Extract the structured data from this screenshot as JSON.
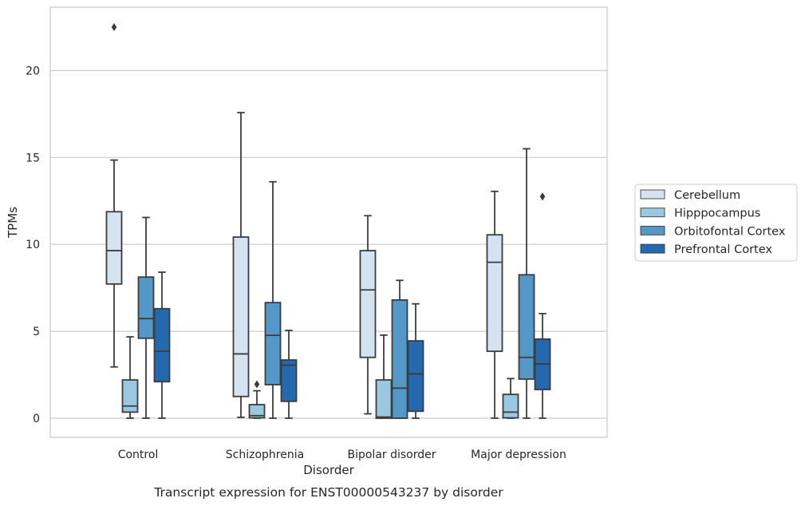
{
  "chart_data": {
    "type": "box",
    "caption": "Transcript expression for ENST00000543237 by disorder",
    "xlabel": "Disorder",
    "ylabel": "TPMs",
    "ylim": [
      -1.1,
      23.5
    ],
    "yticks": [
      0,
      5,
      10,
      15,
      20
    ],
    "grid": "horizontal",
    "legend_position": "right",
    "categories": [
      "Control",
      "Schizophrenia",
      "Bipolar disorder",
      "Major depression"
    ],
    "series": [
      {
        "name": "Cerebellum",
        "color": "#d5e3f1",
        "boxes": [
          {
            "whisker_low": 2.95,
            "q1": 7.72,
            "median": 9.64,
            "q3": 11.88,
            "whisker_high": 14.85,
            "outliers": [
              22.5
            ]
          },
          {
            "whisker_low": 0.05,
            "q1": 1.25,
            "median": 3.7,
            "q3": 10.42,
            "whisker_high": 17.58,
            "outliers": []
          },
          {
            "whisker_low": 0.25,
            "q1": 3.5,
            "median": 7.38,
            "q3": 9.64,
            "whisker_high": 11.65,
            "outliers": []
          },
          {
            "whisker_low": 0.0,
            "q1": 3.85,
            "median": 8.97,
            "q3": 10.55,
            "whisker_high": 13.05,
            "outliers": []
          }
        ]
      },
      {
        "name": "Hipppocampus",
        "color": "#9ac8e0",
        "boxes": [
          {
            "whisker_low": 0.0,
            "q1": 0.35,
            "median": 0.7,
            "q3": 2.2,
            "whisker_high": 4.68,
            "outliers": []
          },
          {
            "whisker_low": 0.0,
            "q1": 0.02,
            "median": 0.15,
            "q3": 0.78,
            "whisker_high": 1.58,
            "outliers": [
              1.95
            ]
          },
          {
            "whisker_low": 0.0,
            "q1": 0.0,
            "median": 0.07,
            "q3": 2.2,
            "whisker_high": 4.78,
            "outliers": []
          },
          {
            "whisker_low": 0.0,
            "q1": 0.02,
            "median": 0.35,
            "q3": 1.37,
            "whisker_high": 2.28,
            "outliers": []
          }
        ]
      },
      {
        "name": "Orbitofontal Cortex",
        "color": "#5398c7",
        "boxes": [
          {
            "whisker_low": 0.0,
            "q1": 4.6,
            "median": 5.73,
            "q3": 8.12,
            "whisker_high": 11.55,
            "outliers": []
          },
          {
            "whisker_low": 0.0,
            "q1": 1.93,
            "median": 4.77,
            "q3": 6.65,
            "whisker_high": 13.6,
            "outliers": []
          },
          {
            "whisker_low": 0.0,
            "q1": 0.0,
            "median": 1.73,
            "q3": 6.8,
            "whisker_high": 7.93,
            "outliers": []
          },
          {
            "whisker_low": 0.0,
            "q1": 2.25,
            "median": 3.5,
            "q3": 8.25,
            "whisker_high": 15.5,
            "outliers": []
          }
        ]
      },
      {
        "name": "Prefrontal Cortex",
        "color": "#2468ad",
        "boxes": [
          {
            "whisker_low": 0.0,
            "q1": 2.1,
            "median": 3.85,
            "q3": 6.3,
            "whisker_high": 8.4,
            "outliers": []
          },
          {
            "whisker_low": 0.0,
            "q1": 0.97,
            "median": 3.05,
            "q3": 3.35,
            "whisker_high": 5.05,
            "outliers": []
          },
          {
            "whisker_low": 0.0,
            "q1": 0.4,
            "median": 2.55,
            "q3": 4.45,
            "whisker_high": 6.58,
            "outliers": []
          },
          {
            "whisker_low": 0.0,
            "q1": 1.65,
            "median": 3.12,
            "q3": 4.55,
            "whisker_high": 6.02,
            "outliers": [
              12.75
            ]
          }
        ]
      }
    ]
  }
}
